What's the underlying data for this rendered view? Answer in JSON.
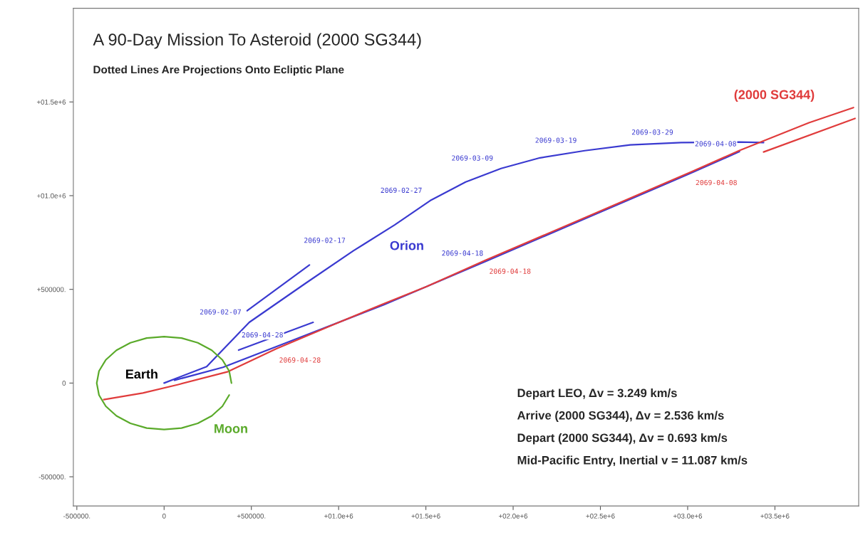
{
  "chart_data": {
    "type": "line",
    "title": "A 90-Day Mission To Asteroid (2000 SG344)",
    "subtitle": "Dotted Lines Are Projections Onto Ecliptic Plane",
    "xlim": [
      -520000,
      3980000
    ],
    "ylim": [
      -656000,
      2000000
    ],
    "xticks": [
      {
        "value": -500000,
        "label": "-500000."
      },
      0,
      {
        "value": 500000,
        "label": "+500000."
      },
      {
        "value": 1000000,
        "label": "+01.0e+6"
      },
      {
        "value": 1500000,
        "label": "+01.5e+6"
      },
      {
        "value": 2000000,
        "label": "+02.0e+6"
      },
      {
        "value": 2500000,
        "label": "+02.5e+6"
      },
      {
        "value": 3000000,
        "label": "+03.0e+6"
      },
      {
        "value": 3500000,
        "label": "+03.5e+6"
      }
    ],
    "yticks": [
      {
        "value": -500000,
        "label": "-500000."
      },
      0,
      {
        "value": 500000,
        "label": "+500000."
      },
      {
        "value": 1000000,
        "label": "+01.0e+6"
      },
      {
        "value": 1500000,
        "label": "+01.5e+6"
      }
    ],
    "grid": false,
    "legend": false,
    "series": [
      {
        "name": "Orion",
        "color": "#3a3ad0",
        "x": [
          0,
          244000,
          488000,
          813000,
          1085000,
          1321000,
          1524000,
          1728000,
          1931000,
          2154000,
          2410000,
          2671000,
          2963000,
          3297000,
          3435000
        ],
        "values": [
          0,
          88000,
          324000,
          534000,
          706000,
          844000,
          973000,
          1073000,
          1145000,
          1202000,
          1240000,
          1271000,
          1283000,
          1286000,
          1283000
        ],
        "value_labels": [
          null,
          null,
          "2069-02-07",
          null,
          "2069-02-17",
          null,
          "2069-02-27",
          null,
          "2069-03-09",
          null,
          "2069-03-19",
          null,
          "2069-03-29",
          null,
          null
        ]
      },
      {
        "color": "#3a3ad0",
        "x": [
          3297000,
          3028000,
          2427000,
          1846000,
          1260000,
          700000,
          337000,
          60000
        ],
        "values": [
          1235000,
          1124000,
          883000,
          651000,
          418000,
          215000,
          84000,
          15000
        ],
        "value_labels": [
          "2069-04-08",
          null,
          null,
          "2069-04-18",
          null,
          "2069-04-28",
          null,
          null
        ]
      },
      {
        "name": "(2000 SG344)",
        "color": "#e03c3c",
        "x": [
          -346000,
          -122000,
          81000,
          366000,
          642000,
          963000,
          1260000,
          1504000,
          1846000,
          2427000,
          3028000,
          3297000,
          3695000,
          3950000
        ],
        "values": [
          -88000,
          -53000,
          -8000,
          61000,
          183000,
          309000,
          424000,
          515000,
          657000,
          889000,
          1130000,
          1241000,
          1389000,
          1470000
        ],
        "value_labels": [
          null,
          null,
          null,
          null,
          "2069-04-28",
          null,
          null,
          null,
          "2069-04-18",
          null,
          "2069-04-08",
          null,
          null,
          null
        ]
      },
      {
        "name": "Moon",
        "color": "#5aaa2a",
        "x": [
          386000,
          373000,
          334000,
          273000,
          193000,
          100000,
          0,
          -100000,
          -193000,
          -273000,
          -334000,
          -373000,
          -386000,
          -373000,
          -334000,
          -273000,
          -193000,
          -100000,
          0,
          100000,
          193000,
          273000,
          334000,
          373000
        ],
        "values": [
          0,
          64000,
          124000,
          175000,
          215000,
          240000,
          248000,
          240000,
          215000,
          175000,
          124000,
          64000,
          0,
          -64000,
          -124000,
          -175000,
          -215000,
          -240000,
          -248000,
          -240000,
          -215000,
          -175000,
          -124000,
          -64000
        ]
      },
      {
        "color": "#3a3ad0",
        "x": [
          476000,
          833000
        ],
        "values": [
          386000,
          630000
        ]
      },
      {
        "color": "#3a3ad0",
        "x": [
          854000,
          427000
        ],
        "values": [
          324000,
          176000
        ]
      },
      {
        "color": "#e03c3c",
        "x": [
          3959000,
          3435000
        ],
        "values": [
          1412000,
          1233000
        ]
      }
    ],
    "annotations": [
      {
        "text": "Earth",
        "x": 0,
        "y": 0
      },
      "Depart LEO, Δv = 3.249 km/s",
      "Arrive (2000 SG344), Δv = 2.536 km/s",
      "Depart (2000 SG344), Δv = 0.693 km/s",
      "Mid-Pacific Entry, Inertial v = 11.087 km/s"
    ]
  }
}
